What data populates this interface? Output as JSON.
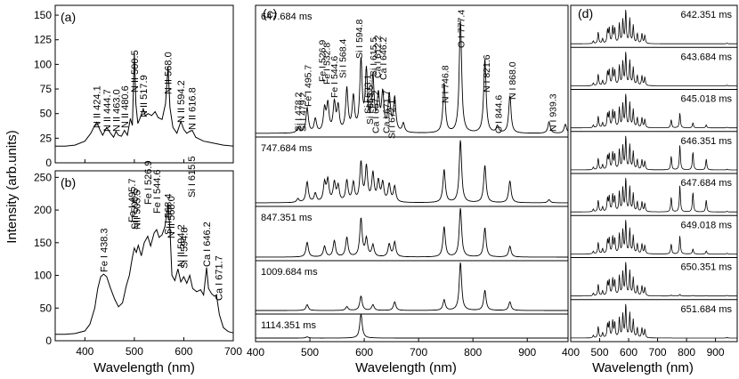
{
  "chart_data": {
    "type": "line",
    "ylabel": "Intensity (arb.units)",
    "xlabel": "Wavelength (nm)",
    "panels": {
      "a": {
        "label": "(a)",
        "xlim": [
          340,
          700
        ],
        "ylim": [
          0,
          160
        ],
        "xticks": [
          400,
          500,
          600,
          700
        ],
        "yticks": [
          0,
          25,
          50,
          75,
          100,
          125,
          150
        ],
        "spectrum": [
          [
            340,
            17
          ],
          [
            360,
            17
          ],
          [
            380,
            18
          ],
          [
            400,
            22
          ],
          [
            412,
            30
          ],
          [
            420,
            38
          ],
          [
            424,
            41
          ],
          [
            430,
            34
          ],
          [
            436,
            28
          ],
          [
            444,
            36
          ],
          [
            452,
            30
          ],
          [
            458,
            26
          ],
          [
            463,
            32
          ],
          [
            468,
            28
          ],
          [
            474,
            27
          ],
          [
            480,
            33
          ],
          [
            486,
            28
          ],
          [
            492,
            45
          ],
          [
            496,
            38
          ],
          [
            500,
            112
          ],
          [
            503,
            60
          ],
          [
            507,
            40
          ],
          [
            512,
            46
          ],
          [
            518,
            55
          ],
          [
            522,
            48
          ],
          [
            528,
            50
          ],
          [
            535,
            48
          ],
          [
            542,
            52
          ],
          [
            548,
            46
          ],
          [
            556,
            44
          ],
          [
            563,
            60
          ],
          [
            568,
            98
          ],
          [
            572,
            56
          ],
          [
            578,
            36
          ],
          [
            586,
            30
          ],
          [
            594,
            42
          ],
          [
            600,
            34
          ],
          [
            606,
            30
          ],
          [
            612,
            32
          ],
          [
            617,
            33
          ],
          [
            624,
            26
          ],
          [
            632,
            24
          ],
          [
            640,
            22
          ],
          [
            650,
            21
          ],
          [
            660,
            20
          ],
          [
            670,
            19
          ],
          [
            680,
            18
          ],
          [
            700,
            17
          ]
        ],
        "peak_labels": [
          {
            "text": "N II 424.1",
            "x": 424.1
          },
          {
            "text": "N II 444.7",
            "x": 444.7
          },
          {
            "text": "N II 463.0",
            "x": 463.0
          },
          {
            "text": "N II 480.6",
            "x": 480.6
          },
          {
            "text": "N II 500.5",
            "x": 500.5
          },
          {
            "text": "N II 517.9",
            "x": 517.9
          },
          {
            "text": "N II 568.0",
            "x": 568.0
          },
          {
            "text": "N II 594.2",
            "x": 594.2
          },
          {
            "text": "N II 616.8",
            "x": 616.8
          }
        ]
      },
      "b": {
        "label": "(b)",
        "xlim": [
          340,
          700
        ],
        "ylim": [
          0,
          260
        ],
        "xticks": [
          400,
          500,
          600,
          700
        ],
        "yticks": [
          0,
          50,
          100,
          150,
          200,
          250
        ],
        "spectrum": [
          [
            340,
            10
          ],
          [
            360,
            10
          ],
          [
            380,
            11
          ],
          [
            400,
            15
          ],
          [
            410,
            25
          ],
          [
            420,
            50
          ],
          [
            426,
            80
          ],
          [
            432,
            98
          ],
          [
            438,
            102
          ],
          [
            444,
            98
          ],
          [
            452,
            80
          ],
          [
            460,
            64
          ],
          [
            468,
            52
          ],
          [
            476,
            58
          ],
          [
            484,
            85
          ],
          [
            490,
            100
          ],
          [
            496,
            128
          ],
          [
            500,
            142
          ],
          [
            504,
            135
          ],
          [
            508,
            146
          ],
          [
            514,
            130
          ],
          [
            520,
            150
          ],
          [
            527,
            160
          ],
          [
            533,
            145
          ],
          [
            540,
            165
          ],
          [
            545,
            170
          ],
          [
            550,
            158
          ],
          [
            556,
            162
          ],
          [
            562,
            175
          ],
          [
            568,
            210
          ],
          [
            572,
            170
          ],
          [
            576,
            100
          ],
          [
            582,
            92
          ],
          [
            588,
            110
          ],
          [
            594,
            90
          ],
          [
            600,
            98
          ],
          [
            606,
            88
          ],
          [
            612,
            100
          ],
          [
            618,
            80
          ],
          [
            626,
            75
          ],
          [
            634,
            78
          ],
          [
            640,
            70
          ],
          [
            646,
            112
          ],
          [
            650,
            80
          ],
          [
            656,
            72
          ],
          [
            662,
            68
          ],
          [
            666,
            70
          ],
          [
            672,
            40
          ],
          [
            680,
            20
          ],
          [
            690,
            14
          ],
          [
            700,
            12
          ]
        ],
        "peak_labels": [
          {
            "text": "Fe I 438.3",
            "x": 438.3
          },
          {
            "text": "Fe I 495.7",
            "x": 495.7
          },
          {
            "text": "Si I 500.5",
            "x": 500.5
          },
          {
            "text": "NII 505.5",
            "x": 505.5
          },
          {
            "text": "Fe I 526.9",
            "x": 526.9
          },
          {
            "text": "Fe I 544.6",
            "x": 544.6
          },
          {
            "text": "Si I 568.4",
            "x": 568.4
          },
          {
            "text": "N II 568.0",
            "x": 568.0
          },
          {
            "text": "N II 594.2",
            "x": 594.2
          },
          {
            "text": "Si I 594.8",
            "x": 594.8
          },
          {
            "text": "Si I 615.5",
            "x": 615.5
          },
          {
            "text": "Ca I 646.2",
            "x": 646.2
          },
          {
            "text": "Ca I 671.7",
            "x": 671.7
          }
        ]
      },
      "c": {
        "label": "(c)",
        "xlim": [
          400,
          975
        ],
        "xticks": [
          400,
          500,
          600,
          700,
          800,
          900
        ],
        "series": [
          {
            "name": "647.684 ms",
            "peaks": [
              [
                478,
                0.05
              ],
              [
                495,
                0.22
              ],
              [
                510,
                0.12
              ],
              [
                527,
                0.2
              ],
              [
                533,
                0.24
              ],
              [
                545,
                0.25
              ],
              [
                552,
                0.22
              ],
              [
                568,
                0.38
              ],
              [
                580,
                0.3
              ],
              [
                594,
                0.62
              ],
              [
                604,
                0.52
              ],
              [
                616,
                0.48
              ],
              [
                626,
                0.3
              ],
              [
                634,
                0.33
              ],
              [
                646,
                0.32
              ],
              [
                656,
                0.3
              ],
              [
                672,
                0.08
              ],
              [
                747,
                0.44
              ],
              [
                777,
                1.0
              ],
              [
                822,
                0.66
              ],
              [
                845,
                0.06
              ],
              [
                868,
                0.33
              ],
              [
                940,
                0.1
              ],
              [
                970,
                0.08
              ]
            ]
          },
          {
            "name": "747.684 ms",
            "peaks": [
              [
                478,
                0.06
              ],
              [
                495,
                0.33
              ],
              [
                510,
                0.14
              ],
              [
                527,
                0.3
              ],
              [
                533,
                0.34
              ],
              [
                545,
                0.3
              ],
              [
                552,
                0.25
              ],
              [
                568,
                0.34
              ],
              [
                580,
                0.3
              ],
              [
                594,
                0.62
              ],
              [
                604,
                0.55
              ],
              [
                616,
                0.45
              ],
              [
                626,
                0.32
              ],
              [
                634,
                0.3
              ],
              [
                646,
                0.28
              ],
              [
                656,
                0.25
              ],
              [
                747,
                0.53
              ],
              [
                777,
                1.0
              ],
              [
                822,
                0.6
              ],
              [
                868,
                0.35
              ],
              [
                940,
                0.05
              ]
            ]
          },
          {
            "name": "847.351 ms",
            "peaks": [
              [
                495,
                0.3
              ],
              [
                527,
                0.22
              ],
              [
                545,
                0.33
              ],
              [
                568,
                0.4
              ],
              [
                594,
                0.78
              ],
              [
                604,
                0.36
              ],
              [
                616,
                0.24
              ],
              [
                646,
                0.26
              ],
              [
                656,
                0.3
              ],
              [
                747,
                0.62
              ],
              [
                777,
                1.0
              ],
              [
                822,
                0.6
              ],
              [
                868,
                0.22
              ]
            ]
          },
          {
            "name": "1009.684 ms",
            "peaks": [
              [
                495,
                0.12
              ],
              [
                568,
                0.08
              ],
              [
                594,
                0.3
              ],
              [
                616,
                0.12
              ],
              [
                656,
                0.18
              ],
              [
                747,
                0.22
              ],
              [
                777,
                1.0
              ],
              [
                822,
                0.42
              ],
              [
                868,
                0.18
              ]
            ]
          },
          {
            "name": "1114.351 ms",
            "peaks": [
              [
                594,
                1.0
              ],
              [
                495,
                0.05
              ]
            ]
          }
        ],
        "peak_labels": [
          {
            "text": "Si I 478.2",
            "x": 478.2
          },
          {
            "text": "Si I 479.2",
            "x": 479.2
          },
          {
            "text": "Fe I 495.7",
            "x": 495.7
          },
          {
            "text": "Fe I 526.9",
            "x": 526.9
          },
          {
            "text": "Fe I 532.8",
            "x": 532.8
          },
          {
            "text": "Fe I 544.6",
            "x": 544.6
          },
          {
            "text": "Si I 568.4",
            "x": 568.4
          },
          {
            "text": "Si I 594.8",
            "x": 594.8
          },
          {
            "text": "Si I 633.1",
            "x": 633.1
          },
          {
            "text": "Si I 615.5",
            "x": 615.5
          },
          {
            "text": "Ca I 612.2",
            "x": 612.2
          },
          {
            "text": "Ca I 646.2",
            "x": 646.2
          },
          {
            "text": "Si I 655.5",
            "x": 655.5
          },
          {
            "text": "Ca I 657.2",
            "x": 657.2
          },
          {
            "text": "Ca I 671.7",
            "x": 671.7
          },
          {
            "text": "Si I 672.1",
            "x": 672.1
          },
          {
            "text": "N I 746.8",
            "x": 746.8
          },
          {
            "text": "O I 777.4",
            "x": 777.4
          },
          {
            "text": "N I 821.6",
            "x": 821.6
          },
          {
            "text": "O I 844.6",
            "x": 844.6
          },
          {
            "text": "N I 868.0",
            "x": 868.0
          },
          {
            "text": "N I 939.3",
            "x": 939.3
          }
        ]
      },
      "d": {
        "label": "(d)",
        "xlim": [
          400,
          975
        ],
        "xticks": [
          400,
          500,
          600,
          700,
          800,
          900
        ],
        "series": [
          {
            "name": "642.351 ms",
            "O": 0.0,
            "N": 0.0
          },
          {
            "name": "643.684 ms",
            "O": 0.0,
            "N": 0.0
          },
          {
            "name": "645.018 ms",
            "O": 0.45,
            "N": 0.15
          },
          {
            "name": "646.351 ms",
            "O": 0.75,
            "N": 0.55
          },
          {
            "name": "647.684 ms",
            "O": 0.8,
            "N": 0.6
          },
          {
            "name": "649.018 ms",
            "O": 0.55,
            "N": 0.15
          },
          {
            "name": "650.351 ms",
            "O": 0.05,
            "N": 0.02
          },
          {
            "name": "651.684 ms",
            "O": 0.0,
            "N": 0.0
          }
        ]
      }
    }
  }
}
